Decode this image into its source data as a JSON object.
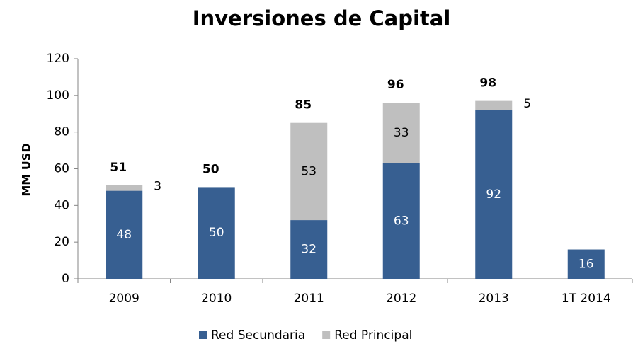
{
  "chart_data": {
    "type": "bar",
    "stacked": true,
    "title": "Inversiones de Capital",
    "y_label": "MM USD",
    "categories": [
      "2009",
      "2010",
      "2011",
      "2012",
      "2013",
      "1T 2014"
    ],
    "series": [
      {
        "name": "Red Secundaria",
        "color": "#375f91",
        "label_color": "#ffffff",
        "values": [
          48,
          50,
          32,
          63,
          92,
          16
        ]
      },
      {
        "name": "Red Principal",
        "color": "#bfbfbf",
        "label_color": "#000000",
        "values": [
          3,
          null,
          53,
          33,
          5,
          null
        ]
      }
    ],
    "totals": [
      51,
      50,
      85,
      96,
      98,
      null
    ],
    "ylim": [
      0,
      120
    ],
    "yticks": [
      0,
      20,
      40,
      60,
      80,
      100,
      120
    ],
    "grid": false,
    "legend": "bottom"
  }
}
